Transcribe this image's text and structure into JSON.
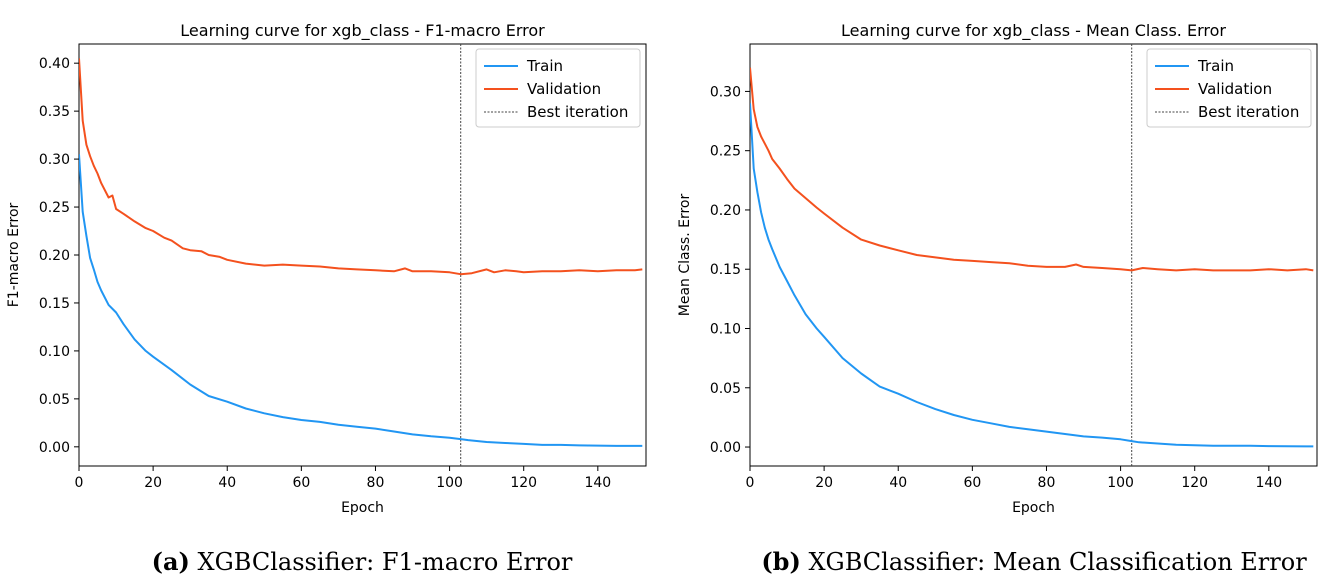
{
  "colors": {
    "train": "#2196f3",
    "validation": "#f4511e",
    "best": "#444444"
  },
  "chart_data": [
    {
      "type": "line",
      "title": "Learning curve for xgb_class - F1-macro Error",
      "xlabel": "Epoch",
      "ylabel": "F1-macro Error",
      "xlim": [
        0,
        153
      ],
      "ylim": [
        -0.02,
        0.42
      ],
      "xticks": [
        "0",
        "20",
        "40",
        "60",
        "80",
        "100",
        "120",
        "140"
      ],
      "yticks": [
        "0.00",
        "0.05",
        "0.10",
        "0.15",
        "0.20",
        "0.25",
        "0.30",
        "0.35",
        "0.40"
      ],
      "legend": "top-right",
      "grid": false,
      "best_iteration": 103,
      "legend_entries": {
        "train": "Train",
        "validation": "Validation",
        "best": "Best iteration"
      },
      "caption_label": "(a)",
      "caption_text": " XGBClassifier: F1-macro Error",
      "series": [
        {
          "name": "Train",
          "x": [
            0,
            1,
            2,
            3,
            4,
            5,
            6,
            8,
            10,
            12,
            15,
            18,
            20,
            25,
            30,
            35,
            40,
            45,
            50,
            55,
            60,
            65,
            70,
            75,
            80,
            85,
            90,
            95,
            100,
            103,
            105,
            110,
            115,
            120,
            125,
            130,
            135,
            140,
            145,
            150,
            152
          ],
          "y": [
            0.305,
            0.245,
            0.22,
            0.197,
            0.185,
            0.172,
            0.163,
            0.148,
            0.14,
            0.128,
            0.112,
            0.1,
            0.094,
            0.08,
            0.065,
            0.053,
            0.047,
            0.04,
            0.035,
            0.031,
            0.028,
            0.026,
            0.023,
            0.021,
            0.019,
            0.016,
            0.013,
            0.011,
            0.0095,
            0.008,
            0.007,
            0.005,
            0.004,
            0.003,
            0.002,
            0.002,
            0.0015,
            0.0013,
            0.001,
            0.001,
            0.001
          ]
        },
        {
          "name": "Validation",
          "x": [
            0,
            1,
            2,
            3,
            4,
            5,
            6,
            8,
            9,
            10,
            12,
            15,
            18,
            20,
            23,
            25,
            28,
            30,
            33,
            35,
            38,
            40,
            45,
            50,
            55,
            60,
            65,
            70,
            75,
            80,
            85,
            88,
            90,
            95,
            100,
            103,
            106,
            110,
            112,
            115,
            118,
            120,
            125,
            130,
            135,
            140,
            145,
            150,
            152
          ],
          "y": [
            0.405,
            0.34,
            0.315,
            0.303,
            0.293,
            0.285,
            0.275,
            0.26,
            0.262,
            0.248,
            0.243,
            0.235,
            0.228,
            0.225,
            0.218,
            0.215,
            0.207,
            0.205,
            0.204,
            0.2,
            0.198,
            0.195,
            0.191,
            0.189,
            0.19,
            0.189,
            0.188,
            0.186,
            0.185,
            0.184,
            0.183,
            0.186,
            0.183,
            0.183,
            0.182,
            0.18,
            0.181,
            0.185,
            0.182,
            0.184,
            0.183,
            0.182,
            0.183,
            0.183,
            0.184,
            0.183,
            0.184,
            0.184,
            0.185
          ]
        }
      ]
    },
    {
      "type": "line",
      "title": "Learning curve for xgb_class - Mean Class. Error",
      "xlabel": "Epoch",
      "ylabel": "Mean Class. Error",
      "xlim": [
        0,
        153
      ],
      "ylim": [
        -0.016,
        0.34
      ],
      "xticks": [
        "0",
        "20",
        "40",
        "60",
        "80",
        "100",
        "120",
        "140"
      ],
      "yticks": [
        "0.00",
        "0.05",
        "0.10",
        "0.15",
        "0.20",
        "0.25",
        "0.30"
      ],
      "legend": "top-right",
      "grid": false,
      "best_iteration": 103,
      "legend_entries": {
        "train": "Train",
        "validation": "Validation",
        "best": "Best iteration"
      },
      "caption_label": "(b)",
      "caption_text": " XGBClassifier: Mean Classification Error",
      "series": [
        {
          "name": "Train",
          "x": [
            0,
            1,
            2,
            3,
            4,
            5,
            6,
            8,
            10,
            12,
            15,
            18,
            20,
            25,
            30,
            35,
            40,
            45,
            50,
            55,
            60,
            65,
            70,
            75,
            80,
            85,
            90,
            95,
            100,
            103,
            105,
            110,
            115,
            120,
            125,
            130,
            135,
            140,
            145,
            150,
            152
          ],
          "y": [
            0.29,
            0.235,
            0.215,
            0.198,
            0.185,
            0.175,
            0.167,
            0.152,
            0.14,
            0.128,
            0.112,
            0.1,
            0.093,
            0.075,
            0.062,
            0.051,
            0.045,
            0.038,
            0.032,
            0.027,
            0.023,
            0.02,
            0.017,
            0.015,
            0.013,
            0.011,
            0.009,
            0.008,
            0.0065,
            0.005,
            0.004,
            0.003,
            0.002,
            0.0015,
            0.001,
            0.001,
            0.001,
            0.0008,
            0.0006,
            0.0005,
            0.0005
          ]
        },
        {
          "name": "Validation",
          "x": [
            0,
            1,
            2,
            3,
            4,
            5,
            6,
            8,
            10,
            12,
            15,
            18,
            20,
            25,
            30,
            35,
            40,
            45,
            50,
            55,
            60,
            65,
            70,
            75,
            80,
            85,
            88,
            90,
            95,
            100,
            103,
            106,
            110,
            115,
            120,
            125,
            130,
            135,
            140,
            145,
            150,
            152
          ],
          "y": [
            0.32,
            0.285,
            0.27,
            0.262,
            0.256,
            0.25,
            0.243,
            0.235,
            0.226,
            0.218,
            0.21,
            0.202,
            0.197,
            0.185,
            0.175,
            0.17,
            0.166,
            0.162,
            0.16,
            0.158,
            0.157,
            0.156,
            0.155,
            0.153,
            0.152,
            0.152,
            0.154,
            0.152,
            0.151,
            0.15,
            0.149,
            0.151,
            0.15,
            0.149,
            0.15,
            0.149,
            0.149,
            0.149,
            0.15,
            0.149,
            0.15,
            0.149
          ]
        }
      ]
    }
  ]
}
